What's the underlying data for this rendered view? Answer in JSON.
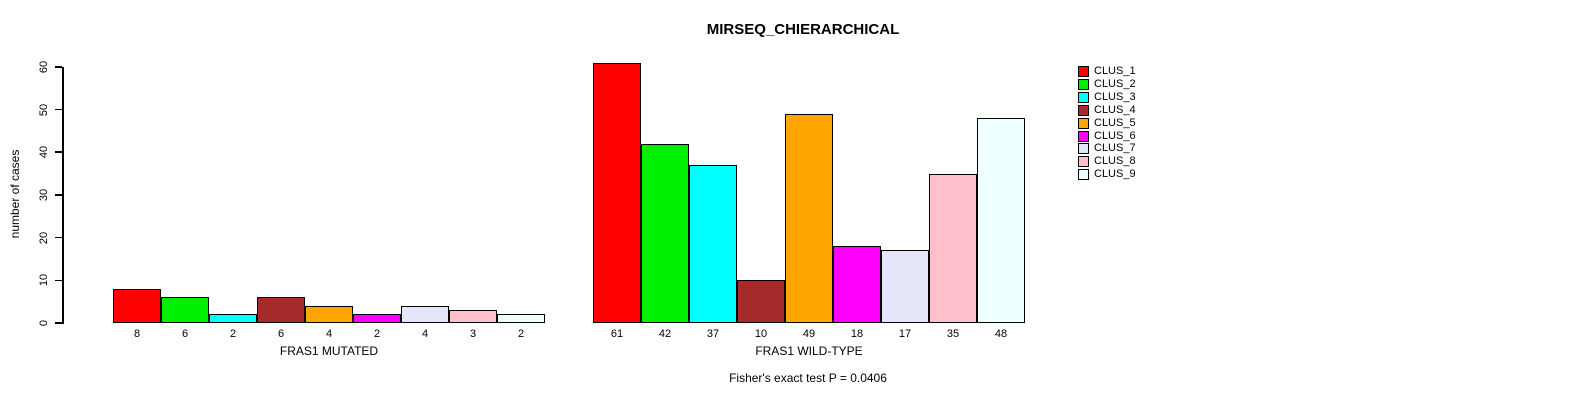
{
  "chart_data": {
    "type": "bar",
    "title": "MIRSEQ_CHIERARCHICAL",
    "ylabel": "number of cases",
    "ylim": [
      0,
      60
    ],
    "yticks": [
      0,
      10,
      20,
      30,
      40,
      50,
      60
    ],
    "grid": false,
    "legend_position": "right",
    "groups": [
      {
        "label": "FRAS1 MUTATED",
        "values": [
          8,
          6,
          2,
          6,
          4,
          2,
          4,
          3,
          2
        ]
      },
      {
        "label": "FRAS1 WILD-TYPE",
        "values": [
          61,
          42,
          37,
          10,
          49,
          18,
          17,
          35,
          48
        ]
      }
    ],
    "clusters": [
      {
        "name": "CLUS_1",
        "color": "#FF0000"
      },
      {
        "name": "CLUS_2",
        "color": "#00EE00"
      },
      {
        "name": "CLUS_3",
        "color": "#00FFFF"
      },
      {
        "name": "CLUS_4",
        "color": "#A52A2A"
      },
      {
        "name": "CLUS_5",
        "color": "#FFA500"
      },
      {
        "name": "CLUS_6",
        "color": "#FF00FF"
      },
      {
        "name": "CLUS_7",
        "color": "#E6E6FA"
      },
      {
        "name": "CLUS_8",
        "color": "#FFC0CB"
      },
      {
        "name": "CLUS_9",
        "color": "#F0FFFF"
      }
    ],
    "caption": "Fisher's exact test P = 0.0406"
  }
}
